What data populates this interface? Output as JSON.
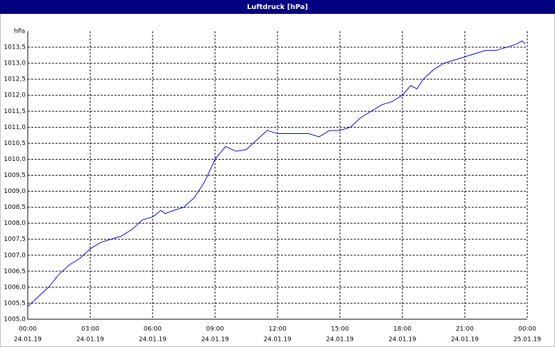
{
  "chart_data": {
    "type": "line",
    "title": "Luftdruck [hPa]",
    "y_label": "hPa",
    "x": [
      0,
      0.5,
      1,
      1.5,
      2,
      2.5,
      3,
      3.5,
      4,
      4.5,
      5,
      5.5,
      6,
      6.4,
      6.6,
      7,
      7.5,
      8,
      8.5,
      9,
      9.5,
      10,
      10.5,
      11,
      11.5,
      12,
      12.5,
      13,
      13.5,
      14,
      14.5,
      15,
      15.5,
      16,
      16.5,
      17,
      17.5,
      18,
      18.4,
      18.7,
      19,
      19.5,
      20,
      20.5,
      21,
      21.5,
      22,
      22.5,
      23,
      23.5,
      23.75,
      23.9
    ],
    "series": [
      {
        "name": "Luftdruck",
        "color": "#0000cc",
        "values": [
          1005.4,
          1005.7,
          1006.0,
          1006.4,
          1006.7,
          1006.9,
          1007.2,
          1007.4,
          1007.5,
          1007.6,
          1007.8,
          1008.1,
          1008.2,
          1008.4,
          1008.3,
          1008.4,
          1008.5,
          1008.8,
          1009.3,
          1010.0,
          1010.4,
          1010.25,
          1010.3,
          1010.6,
          1010.9,
          1010.8,
          1010.8,
          1010.8,
          1010.8,
          1010.7,
          1010.9,
          1010.9,
          1011.0,
          1011.3,
          1011.5,
          1011.7,
          1011.8,
          1012.0,
          1012.3,
          1012.2,
          1012.5,
          1012.8,
          1013.0,
          1013.1,
          1013.2,
          1013.3,
          1013.4,
          1013.4,
          1013.5,
          1013.6,
          1013.7,
          1013.6
        ]
      }
    ],
    "xlim": [
      0,
      24
    ],
    "xticks": [
      {
        "value": 0,
        "label": "00:00",
        "date": "24.01.19"
      },
      {
        "value": 3,
        "label": "03:00",
        "date": "24.01.19"
      },
      {
        "value": 6,
        "label": "06:00",
        "date": "24.01.19"
      },
      {
        "value": 9,
        "label": "09:00",
        "date": "24.01.19"
      },
      {
        "value": 12,
        "label": "12:00",
        "date": "24.01.19"
      },
      {
        "value": 15,
        "label": "15:00",
        "date": "24.01.19"
      },
      {
        "value": 18,
        "label": "18:00",
        "date": "24.01.19"
      },
      {
        "value": 21,
        "label": "21:00",
        "date": "24.01.19"
      },
      {
        "value": 24,
        "label": "00:00",
        "date": "25.01.19"
      }
    ],
    "ylim": [
      1005,
      1014
    ],
    "yticks": [
      {
        "value": 1005,
        "label": "1005,0"
      },
      {
        "value": 1005.5,
        "label": "1005,5"
      },
      {
        "value": 1006,
        "label": "1006,0"
      },
      {
        "value": 1006.5,
        "label": "1006,5"
      },
      {
        "value": 1007,
        "label": "1007,0"
      },
      {
        "value": 1007.5,
        "label": "1007,5"
      },
      {
        "value": 1008,
        "label": "1008,0"
      },
      {
        "value": 1008.5,
        "label": "1008,5"
      },
      {
        "value": 1009,
        "label": "1009,0"
      },
      {
        "value": 1009.5,
        "label": "1009,5"
      },
      {
        "value": 1010,
        "label": "1010,0"
      },
      {
        "value": 1010.5,
        "label": "1010,5"
      },
      {
        "value": 1011,
        "label": "1011,0"
      },
      {
        "value": 1011.5,
        "label": "1011,5"
      },
      {
        "value": 1012,
        "label": "1012,0"
      },
      {
        "value": 1012.5,
        "label": "1012,5"
      },
      {
        "value": 1013,
        "label": "1013,0"
      },
      {
        "value": 1013.5,
        "label": "1013,5"
      }
    ],
    "grid": true
  }
}
